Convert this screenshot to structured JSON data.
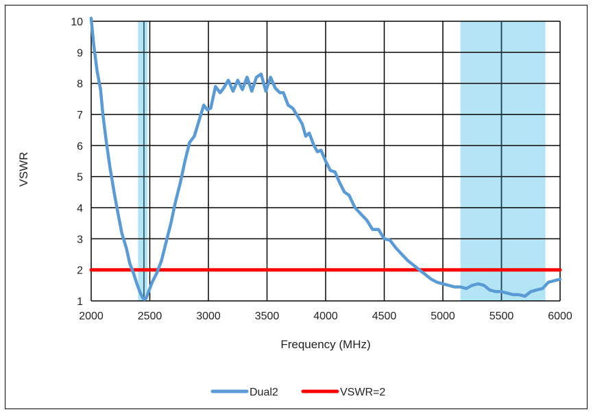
{
  "chart_data": {
    "type": "line",
    "title": "",
    "xlabel": "Frequency (MHz)",
    "ylabel": "VSWR",
    "xlim": [
      2000,
      6000
    ],
    "ylim": [
      1,
      10
    ],
    "x_ticks": [
      2000,
      2500,
      3000,
      3500,
      4000,
      4500,
      5000,
      5500,
      6000
    ],
    "y_ticks": [
      1,
      2,
      3,
      4,
      5,
      6,
      7,
      8,
      9,
      10
    ],
    "grid": true,
    "legend_position": "bottom",
    "shaded_bands": [
      {
        "from": 2400,
        "to": 2480,
        "color": "#b3e5f5"
      },
      {
        "from": 5150,
        "to": 5875,
        "color": "#b3e5f5"
      }
    ],
    "vertical_markers": [
      2450,
      5500
    ],
    "series": [
      {
        "name": "Dual2",
        "color": "#5b9bd5",
        "points": [
          [
            2000,
            10.1
          ],
          [
            2020,
            9.3
          ],
          [
            2050,
            8.4
          ],
          [
            2080,
            7.8
          ],
          [
            2100,
            7.0
          ],
          [
            2130,
            6.1
          ],
          [
            2160,
            5.3
          ],
          [
            2200,
            4.4
          ],
          [
            2230,
            3.8
          ],
          [
            2260,
            3.2
          ],
          [
            2300,
            2.7
          ],
          [
            2330,
            2.2
          ],
          [
            2360,
            1.9
          ],
          [
            2390,
            1.55
          ],
          [
            2420,
            1.25
          ],
          [
            2440,
            1.1
          ],
          [
            2455,
            1.05
          ],
          [
            2470,
            1.1
          ],
          [
            2490,
            1.3
          ],
          [
            2520,
            1.6
          ],
          [
            2560,
            1.9
          ],
          [
            2600,
            2.3
          ],
          [
            2640,
            2.9
          ],
          [
            2680,
            3.5
          ],
          [
            2720,
            4.2
          ],
          [
            2760,
            4.8
          ],
          [
            2800,
            5.5
          ],
          [
            2840,
            6.1
          ],
          [
            2880,
            6.3
          ],
          [
            2920,
            6.8
          ],
          [
            2960,
            7.3
          ],
          [
            2990,
            7.15
          ],
          [
            3020,
            7.2
          ],
          [
            3060,
            7.9
          ],
          [
            3100,
            7.7
          ],
          [
            3130,
            7.85
          ],
          [
            3170,
            8.1
          ],
          [
            3210,
            7.75
          ],
          [
            3250,
            8.1
          ],
          [
            3290,
            7.8
          ],
          [
            3330,
            8.2
          ],
          [
            3370,
            7.75
          ],
          [
            3410,
            8.2
          ],
          [
            3450,
            8.3
          ],
          [
            3490,
            7.75
          ],
          [
            3530,
            8.2
          ],
          [
            3570,
            7.85
          ],
          [
            3610,
            7.7
          ],
          [
            3640,
            7.7
          ],
          [
            3680,
            7.3
          ],
          [
            3720,
            7.2
          ],
          [
            3760,
            6.95
          ],
          [
            3800,
            6.7
          ],
          [
            3830,
            6.3
          ],
          [
            3860,
            6.4
          ],
          [
            3900,
            6.0
          ],
          [
            3930,
            5.8
          ],
          [
            3960,
            5.85
          ],
          [
            4000,
            5.5
          ],
          [
            4040,
            5.2
          ],
          [
            4080,
            5.15
          ],
          [
            4120,
            4.8
          ],
          [
            4160,
            4.5
          ],
          [
            4200,
            4.4
          ],
          [
            4250,
            4.0
          ],
          [
            4300,
            3.8
          ],
          [
            4350,
            3.6
          ],
          [
            4400,
            3.3
          ],
          [
            4450,
            3.3
          ],
          [
            4500,
            3.0
          ],
          [
            4550,
            2.95
          ],
          [
            4600,
            2.7
          ],
          [
            4650,
            2.5
          ],
          [
            4700,
            2.3
          ],
          [
            4750,
            2.15
          ],
          [
            4800,
            2.0
          ],
          [
            4850,
            1.85
          ],
          [
            4900,
            1.7
          ],
          [
            4950,
            1.6
          ],
          [
            5000,
            1.55
          ],
          [
            5050,
            1.5
          ],
          [
            5100,
            1.45
          ],
          [
            5150,
            1.45
          ],
          [
            5200,
            1.4
          ],
          [
            5250,
            1.5
          ],
          [
            5300,
            1.55
          ],
          [
            5350,
            1.5
          ],
          [
            5400,
            1.35
          ],
          [
            5450,
            1.3
          ],
          [
            5500,
            1.3
          ],
          [
            5550,
            1.25
          ],
          [
            5600,
            1.2
          ],
          [
            5650,
            1.2
          ],
          [
            5700,
            1.15
          ],
          [
            5750,
            1.3
          ],
          [
            5800,
            1.35
          ],
          [
            5850,
            1.4
          ],
          [
            5900,
            1.6
          ],
          [
            5950,
            1.65
          ],
          [
            6000,
            1.7
          ]
        ]
      },
      {
        "name": "VSWR=2",
        "color": "#ff0000",
        "points": [
          [
            2000,
            2
          ],
          [
            6000,
            2
          ]
        ]
      }
    ]
  }
}
